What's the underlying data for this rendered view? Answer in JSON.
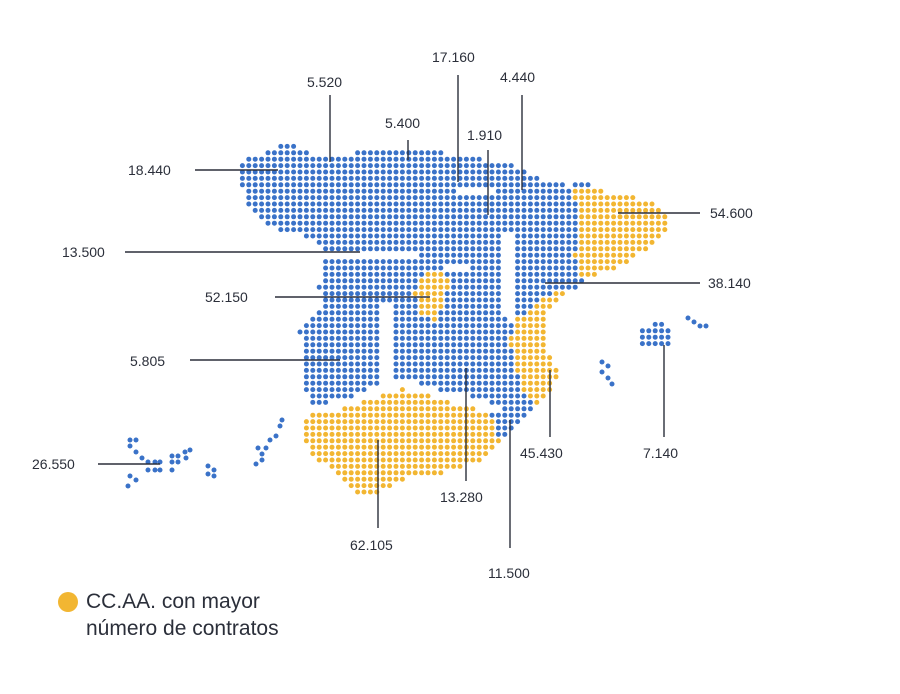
{
  "colors": {
    "blue": "#3a72c8",
    "yellow": "#f2b632",
    "text": "#2b2f3a"
  },
  "regions": [
    {
      "id": "galicia",
      "value": "18.440",
      "highlight": false
    },
    {
      "id": "asturias",
      "value": "5.520",
      "highlight": false
    },
    {
      "id": "cantabria",
      "value": "5.400",
      "highlight": false
    },
    {
      "id": "pais-vasco",
      "value": "17.160",
      "highlight": false
    },
    {
      "id": "la-rioja",
      "value": "1.910",
      "highlight": false
    },
    {
      "id": "navarra",
      "value": "4.440",
      "highlight": false
    },
    {
      "id": "cataluna",
      "value": "54.600",
      "highlight": true
    },
    {
      "id": "castilla-leon",
      "value": "13.500",
      "highlight": false
    },
    {
      "id": "aragon",
      "value": "38.140",
      "highlight": false
    },
    {
      "id": "madrid",
      "value": "52.150",
      "highlight": true
    },
    {
      "id": "extremadura",
      "value": "5.805",
      "highlight": false
    },
    {
      "id": "baleares",
      "value": "7.140",
      "highlight": false
    },
    {
      "id": "comunidad-valenciana",
      "value": "45.430",
      "highlight": true
    },
    {
      "id": "castilla-la-mancha",
      "value": "13.280",
      "highlight": false
    },
    {
      "id": "murcia",
      "value": "11.500",
      "highlight": false
    },
    {
      "id": "andalucia",
      "value": "62.105",
      "highlight": true
    },
    {
      "id": "canarias",
      "value": "26.550",
      "highlight": false
    }
  ],
  "legend": {
    "line1": "CC.AA. con mayor",
    "line2": "número de contratos",
    "color": "#f2b632"
  }
}
